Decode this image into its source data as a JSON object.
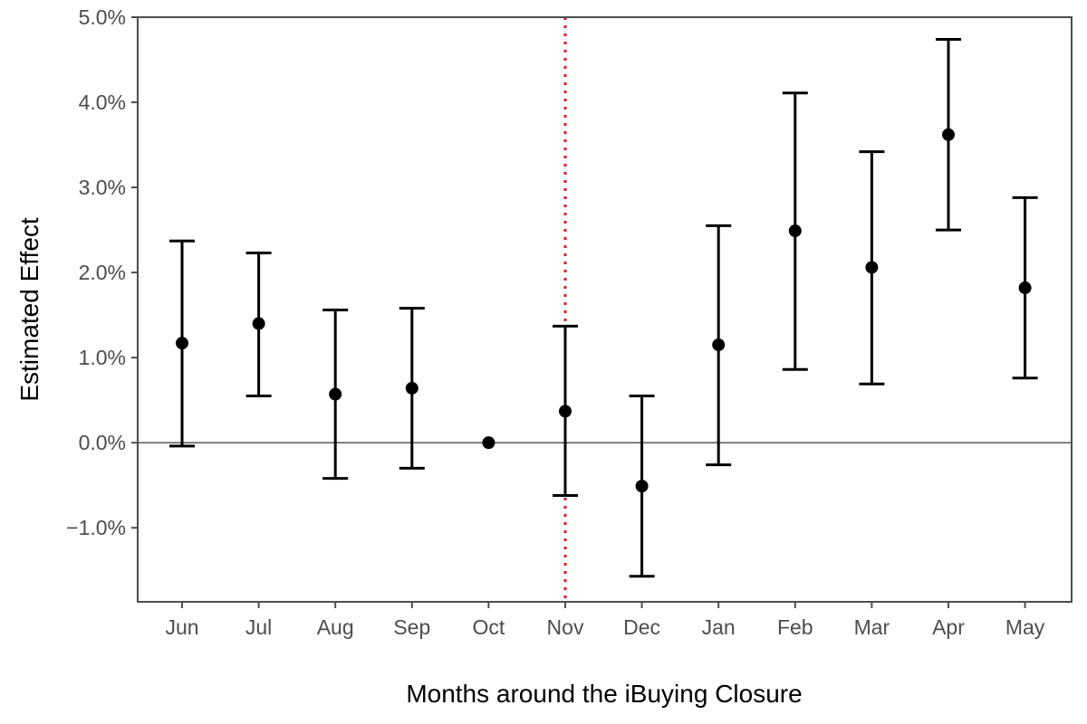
{
  "chart_data": {
    "type": "scatter",
    "subtype": "point-with-error-bars",
    "title": "",
    "xlabel": "Months around the iBuying Closure",
    "ylabel": "Estimated Effect",
    "categories": [
      "Jun",
      "Jul",
      "Aug",
      "Sep",
      "Oct",
      "Nov",
      "Dec",
      "Jan",
      "Feb",
      "Mar",
      "Apr",
      "May"
    ],
    "estimates": [
      1.17,
      1.4,
      0.57,
      0.64,
      0.0,
      0.37,
      -0.51,
      1.15,
      2.49,
      2.06,
      3.62,
      1.82
    ],
    "ci_lower": [
      -0.04,
      0.55,
      -0.42,
      -0.3,
      null,
      -0.62,
      -1.57,
      -0.26,
      0.86,
      0.69,
      2.5,
      0.76
    ],
    "ci_upper": [
      2.37,
      2.23,
      1.56,
      1.58,
      null,
      1.37,
      0.55,
      2.55,
      4.11,
      3.42,
      4.74,
      2.88
    ],
    "unit": "%",
    "ylim": [
      -1.87,
      5.0
    ],
    "yticks": [
      -1.0,
      0.0,
      1.0,
      2.0,
      3.0,
      4.0,
      5.0
    ],
    "ytick_labels": [
      "−1.0%",
      "0.0%",
      "1.0%",
      "2.0%",
      "3.0%",
      "4.0%",
      "5.0%"
    ],
    "reference_hline": 0.0,
    "reference_vline_category": "Nov",
    "colors": {
      "points": "#000000",
      "vline": "#e41a1c",
      "frame": "#4d4d4d",
      "tick_text": "#4d4d4d"
    },
    "grid": false,
    "legend": "none"
  }
}
